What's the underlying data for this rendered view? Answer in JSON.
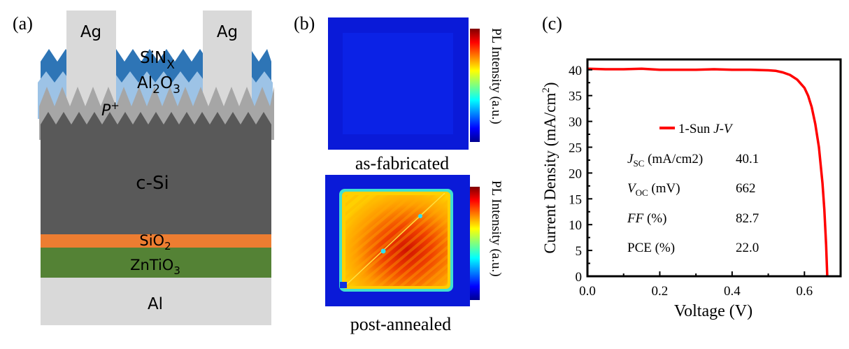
{
  "panel_a": {
    "label": "(a)",
    "layers": {
      "ag_left": "Ag",
      "ag_right": "Ag",
      "sinx": {
        "base": "SiN",
        "sub": "X"
      },
      "al2o3": {
        "p1": "Al",
        "s1": "2",
        "p2": "O",
        "s2": "3"
      },
      "pplus": {
        "base": "P",
        "sup": "+"
      },
      "csi": "c-Si",
      "sio2": {
        "base": "SiO",
        "sub": "2"
      },
      "zntio3": {
        "base": "ZnTiO",
        "sub": "3"
      },
      "al": "Al"
    },
    "colors": {
      "ag": "#D9D9D9",
      "sinx": "#2E75B6",
      "al2o3": "#9DC3E6",
      "pplus": "#A6A6A6",
      "csi": "#595959",
      "sio2": "#ED7D31",
      "zntio3": "#548235",
      "al": "#D9D9D9"
    }
  },
  "panel_b": {
    "label": "(b)",
    "maps": [
      {
        "caption": "as-fabricated",
        "colorbar_label": "PL Intensity (a.u.)"
      },
      {
        "caption": "post-annealed",
        "colorbar_label": "PL Intensity (a.u.)"
      }
    ],
    "colormap": "jet"
  },
  "panel_c": {
    "label": "(c)"
  },
  "chart_data": {
    "type": "line",
    "xlabel": "Voltage (V)",
    "ylabel": {
      "main": "Current Density (mA/cm",
      "sup": "2",
      "end": ")"
    },
    "xlim": [
      0,
      0.7
    ],
    "ylim": [
      0,
      42
    ],
    "xticks": [
      "0.0",
      "0.2",
      "0.4",
      "0.6"
    ],
    "xtick_values": [
      0,
      0.2,
      0.4,
      0.6
    ],
    "yticks": [
      "0",
      "5",
      "10",
      "15",
      "20",
      "25",
      "30",
      "35",
      "40"
    ],
    "ytick_values": [
      0,
      5,
      10,
      15,
      20,
      25,
      30,
      35,
      40
    ],
    "grid": false,
    "legend_position": "center",
    "series": [
      {
        "name": {
          "text": "1-Sun ",
          "italic": "J-V"
        },
        "color": "#FF0000",
        "x": [
          0,
          0.05,
          0.1,
          0.15,
          0.2,
          0.3,
          0.35,
          0.4,
          0.45,
          0.5,
          0.52,
          0.54,
          0.56,
          0.58,
          0.6,
          0.61,
          0.62,
          0.63,
          0.64,
          0.65,
          0.655,
          0.66,
          0.663
        ],
        "y": [
          40.2,
          40.1,
          40.1,
          40.2,
          40.0,
          40.0,
          40.1,
          40.0,
          40.0,
          39.9,
          39.8,
          39.5,
          39.0,
          38.1,
          36.5,
          35.0,
          32.8,
          29.5,
          25.0,
          18.0,
          13.0,
          6.0,
          0
        ]
      }
    ],
    "annotations": [
      {
        "label_italic": "J",
        "label_sub": "SC",
        "label_rest": " (mA/cm2)",
        "value": "40.1"
      },
      {
        "label_italic": "V",
        "label_sub": "OC",
        "label_rest": " (mV)",
        "value": "662"
      },
      {
        "label_italic": "FF",
        "label_sub": "",
        "label_rest": " (%)",
        "value": "82.7"
      },
      {
        "label_italic": "",
        "label_sub": "",
        "label_rest": "PCE (%)",
        "value": "22.0"
      }
    ]
  }
}
